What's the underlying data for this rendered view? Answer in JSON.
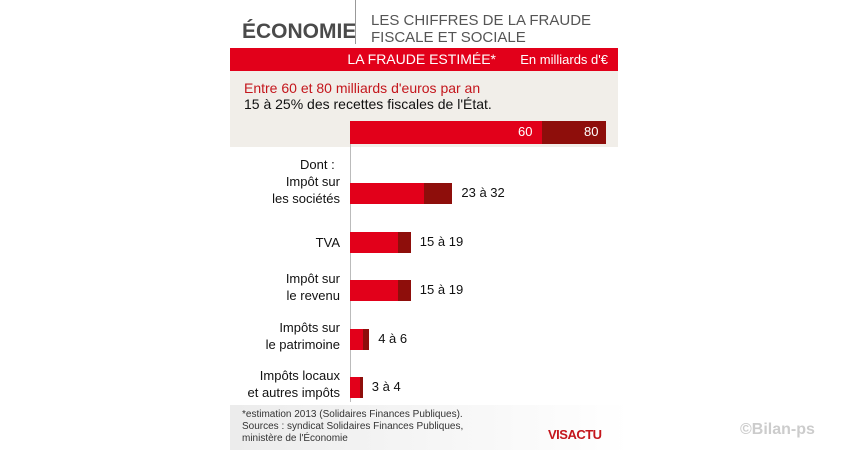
{
  "header": {
    "kicker": "ÉCONOMIE",
    "title_line1": "LES CHIFFRES DE LA FRAUDE",
    "title_line2": "FISCALE ET SOCIALE"
  },
  "band": {
    "title": "LA FRAUDE ESTIMÉE*",
    "unit": "En milliards d'€"
  },
  "summary": {
    "line1": "Entre 60 et 80 milliards d'euros par an",
    "line2": "15 à 25% des recettes fiscales de l'État."
  },
  "colors": {
    "low": "#e2001a",
    "high": "#8e0e0b"
  },
  "chart_data": {
    "type": "bar",
    "title": "LA FRAUDE ESTIMÉE*",
    "unit": "En milliards d'€",
    "total": {
      "low": 60,
      "high": 80,
      "low_label": "60",
      "high_label": "80"
    },
    "subheading": "Dont :",
    "categories": [
      {
        "label1": "Impôt sur",
        "label2": "les sociétés",
        "low": 23,
        "high": 32,
        "value_label": "23 à 32"
      },
      {
        "label1": "TVA",
        "label2": "",
        "low": 15,
        "high": 19,
        "value_label": "15 à 19"
      },
      {
        "label1": "Impôt sur",
        "label2": "le revenu",
        "low": 15,
        "high": 19,
        "value_label": "15 à 19"
      },
      {
        "label1": "Impôts sur",
        "label2": "le patrimoine",
        "low": 4,
        "high": 6,
        "value_label": "4 à 6"
      },
      {
        "label1": "Impôts locaux",
        "label2": "et autres impôts",
        "low": 3,
        "high": 4,
        "value_label": "3 à 4"
      }
    ],
    "xlim": [
      0,
      80
    ]
  },
  "footer": {
    "note": "*estimation 2013 (Solidaires Finances Publiques).",
    "sources1": "Sources : syndicat Solidaires Finances Publiques,",
    "sources2": "ministère de l'Économie",
    "logo": "VISACTU",
    "watermark": "©Bilan-ps"
  }
}
